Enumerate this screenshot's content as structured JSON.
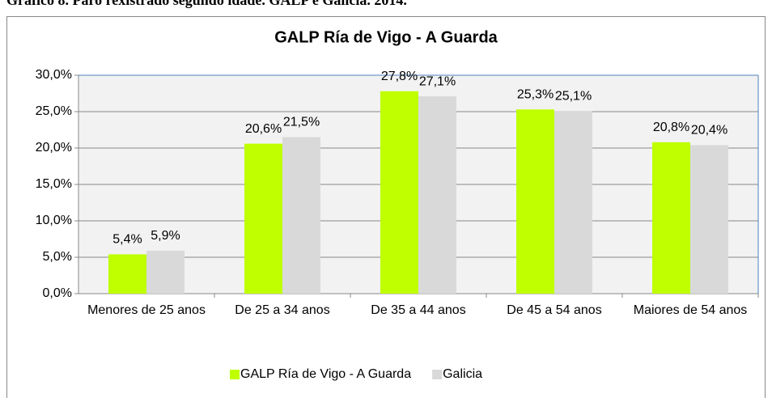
{
  "caption": "Gráfico 8. Paro rexistrado segundo idade. GALP e Galicia. 2014.",
  "chart_data": {
    "type": "bar",
    "title": "GALP Ría de Vigo - A Guarda",
    "categories": [
      "Menores de 25 anos",
      "De 25 a 34 anos",
      "De 35 a 44 anos",
      "De 45 a 54 anos",
      "Maiores de 54 anos"
    ],
    "series": [
      {
        "name": "GALP Ría de Vigo - A Guarda",
        "color": "#bfff00",
        "values": [
          5.4,
          20.6,
          27.8,
          25.3,
          20.8
        ],
        "value_labels": [
          "5,4%",
          "20,6%",
          "27,8%",
          "25,3%",
          "20,8%"
        ]
      },
      {
        "name": "Galicia",
        "color": "#d9d9d9",
        "values": [
          5.9,
          21.5,
          27.1,
          25.1,
          20.4
        ],
        "value_labels": [
          "5,9%",
          "21,5%",
          "27,1%",
          "25,1%",
          "20,4%"
        ]
      }
    ],
    "ylim": [
      0,
      30
    ],
    "yticks": [
      {
        "value": 0,
        "label": "0,0%"
      },
      {
        "value": 5,
        "label": "5,0%"
      },
      {
        "value": 10,
        "label": "10,0%"
      },
      {
        "value": 15,
        "label": "15,0%"
      },
      {
        "value": 20,
        "label": "20,0%"
      },
      {
        "value": 25,
        "label": "25,0%"
      },
      {
        "value": 30,
        "label": "30,0%"
      }
    ],
    "grid": true,
    "legend": "bottom"
  }
}
